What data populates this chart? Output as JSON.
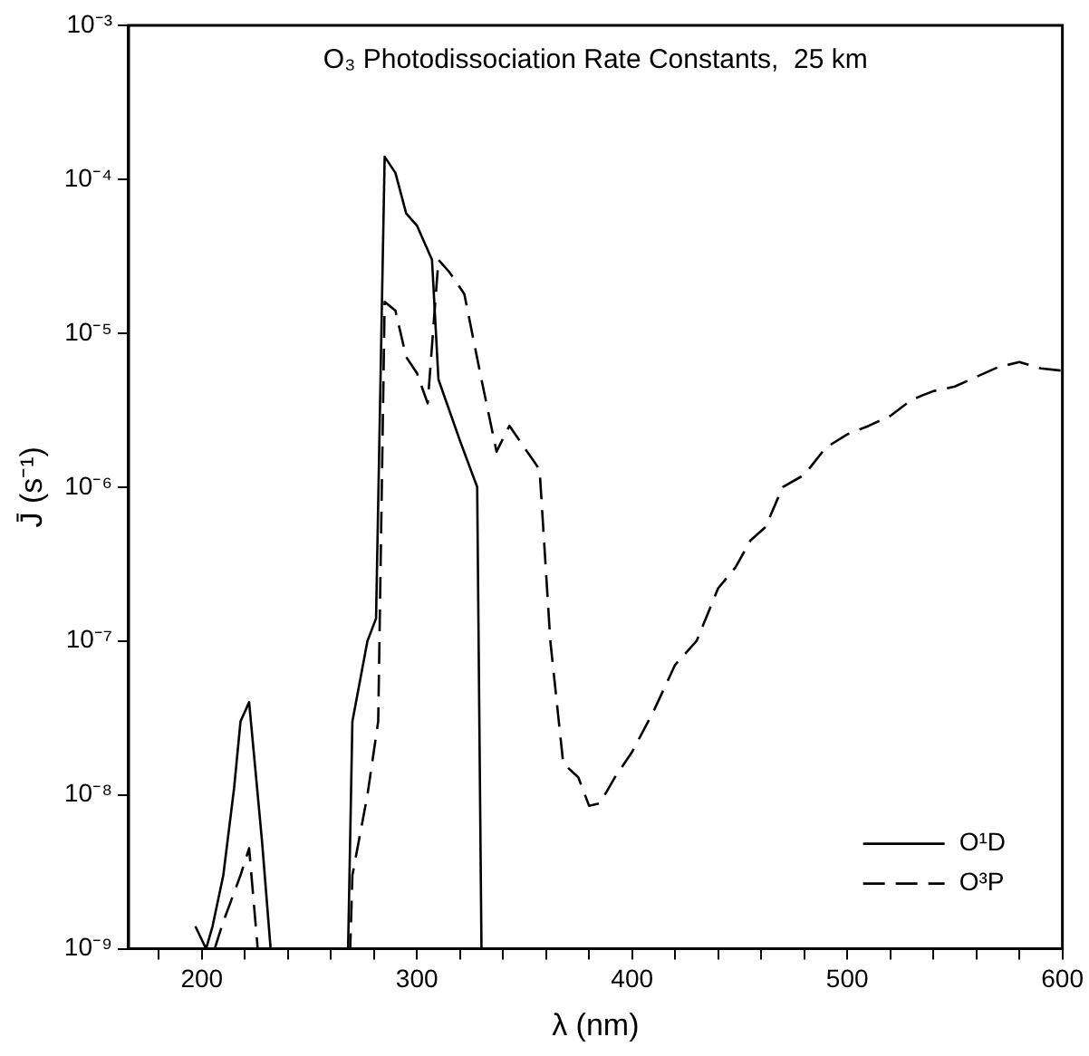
{
  "chart_data": {
    "type": "line",
    "title": "O₃ Photodissociation Rate Constants,  25 km",
    "xlabel": "λ (nm)",
    "ylabel": "J̄ (s⁻¹)",
    "log": "y",
    "grid": false,
    "legend": "bottom right",
    "marker": "none",
    "xlim": [
      166,
      600
    ],
    "xticks": [
      {
        "value": 180,
        "label": null
      },
      200,
      {
        "value": 220,
        "label": null
      },
      {
        "value": 240,
        "label": null
      },
      {
        "value": 260,
        "label": null
      },
      {
        "value": 280,
        "label": null
      },
      300,
      {
        "value": 320,
        "label": null
      },
      {
        "value": 340,
        "label": null
      },
      {
        "value": 360,
        "label": null
      },
      {
        "value": 380,
        "label": null
      },
      400,
      {
        "value": 420,
        "label": null
      },
      {
        "value": 440,
        "label": null
      },
      {
        "value": 460,
        "label": null
      },
      {
        "value": 480,
        "label": null
      },
      500,
      {
        "value": 520,
        "label": null
      },
      {
        "value": 540,
        "label": null
      },
      {
        "value": 560,
        "label": null
      },
      {
        "value": 580,
        "label": null
      },
      600
    ],
    "ylim": [
      1e-09,
      0.001
    ],
    "yticks": [
      {
        "value": 1e-09,
        "label": "10⁻⁹"
      },
      {
        "value": 1e-08,
        "label": "10⁻⁸"
      },
      {
        "value": 1e-07,
        "label": "10⁻⁷"
      },
      {
        "value": 1e-06,
        "label": "10⁻⁶"
      },
      {
        "value": 1e-05,
        "label": "10⁻⁵"
      },
      {
        "value": 0.0001,
        "label": "10⁻⁴"
      },
      {
        "value": 0.001,
        "label": "10⁻³"
      }
    ],
    "series": [
      {
        "name": "O¹D",
        "color": "#000000",
        "line_style": "solid",
        "x": [
          197,
          202,
          205,
          210,
          215,
          218,
          222,
          228,
          232,
          268,
          270,
          277,
          281,
          285,
          290,
          295,
          300,
          307,
          310,
          320,
          328,
          330
        ],
        "values": [
          1.4e-09,
          1e-09,
          1.4e-09,
          3e-09,
          1.1e-08,
          3e-08,
          4e-08,
          5e-09,
          1e-09,
          1e-09,
          3e-08,
          1e-07,
          1.4e-07,
          0.00014,
          0.00011,
          6e-05,
          5e-05,
          3e-05,
          5e-06,
          2e-06,
          1e-06,
          1e-09
        ]
      },
      {
        "name": "O³P",
        "color": "#000000",
        "line_style": "dashed",
        "x": [
          206,
          210,
          218,
          222,
          226,
          269,
          270,
          277,
          282,
          285,
          290,
          295,
          300,
          305,
          310,
          315,
          322,
          330,
          337,
          343,
          350,
          357,
          362,
          368,
          375,
          380,
          385,
          392,
          400,
          410,
          420,
          430,
          440,
          448,
          455,
          462,
          470,
          480,
          490,
          500,
          510,
          520,
          530,
          540,
          550,
          560,
          570,
          580,
          590,
          600
        ],
        "values": [
          1e-09,
          1.5e-09,
          3e-09,
          4.5e-09,
          1e-09,
          1e-09,
          3e-09,
          1e-08,
          3e-08,
          1.6e-05,
          1.4e-05,
          7e-06,
          5.5e-06,
          3.5e-06,
          3e-05,
          2.5e-05,
          1.8e-05,
          5e-06,
          1.7e-06,
          2.5e-06,
          1.8e-06,
          1.3e-06,
          1e-07,
          1.6e-08,
          1.3e-08,
          8.5e-09,
          8.8e-09,
          1.3e-08,
          1.9e-08,
          3.5e-08,
          7e-08,
          1e-07,
          2.2e-07,
          3e-07,
          4.5e-07,
          5.5e-07,
          1e-06,
          1.2e-06,
          1.8e-06,
          2.2e-06,
          2.5e-06,
          2.9e-06,
          3.7e-06,
          4.2e-06,
          4.5e-06,
          5.2e-06,
          6e-06,
          6.5e-06,
          5.9e-06,
          5.7e-06
        ]
      }
    ]
  }
}
